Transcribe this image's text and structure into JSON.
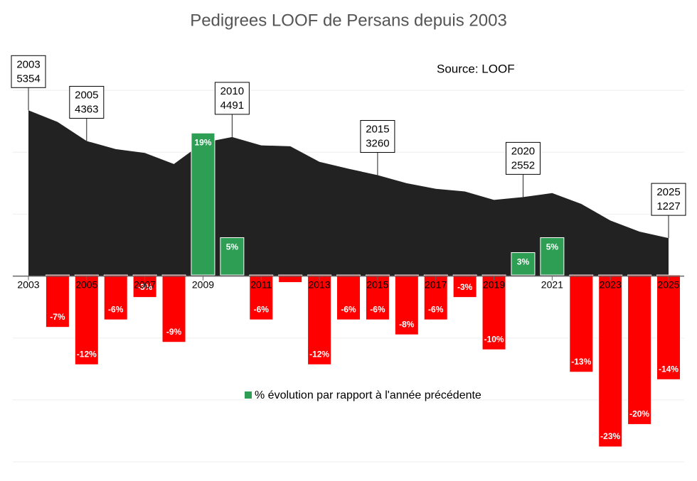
{
  "chart_data": {
    "type": "combo",
    "title": "Pedigrees LOOF de Persans depuis 2003",
    "annotations": [
      "Source: LOOF"
    ],
    "x": [
      2003,
      2004,
      2005,
      2006,
      2007,
      2008,
      2009,
      2010,
      2011,
      2012,
      2013,
      2014,
      2015,
      2016,
      2017,
      2018,
      2019,
      2020,
      2021,
      2022,
      2023,
      2024,
      2025
    ],
    "xlim": [
      2003,
      2025
    ],
    "xticks": [
      2003,
      2005,
      2007,
      2009,
      2011,
      2013,
      2015,
      2017,
      2019,
      2021,
      2023,
      2025
    ],
    "ylim": [
      -6000,
      8000
    ],
    "yticks": [
      -6000,
      -4000,
      -2000,
      0,
      2000,
      4000,
      6000
    ],
    "y2lim": [
      -25,
      33
    ],
    "grid": true,
    "callouts": [
      0,
      2,
      7,
      12,
      17,
      22
    ],
    "series": [
      {
        "type": "area",
        "color": "#222222",
        "values": [
          5354,
          4979,
          4363,
          4101,
          3978,
          3620,
          4308,
          4491,
          4222,
          4193,
          3690,
          3468,
          3260,
          2999,
          2819,
          2734,
          2461,
          2552,
          2680,
          2332,
          1795,
          1436,
          1227
        ]
      },
      {
        "type": "bar",
        "axis": "y2",
        "name": "% évolution par rapport à l'année précédente",
        "color": "#2e9e55",
        "negative_color": "#ff0000",
        "values": [
          null,
          -7,
          -12,
          -6,
          -3,
          -9,
          19,
          5,
          -6,
          -1,
          -12,
          -6,
          -6,
          -8,
          -6,
          -3,
          -10,
          3,
          5,
          -13,
          -23,
          -20,
          -14
        ],
        "value_labels": [
          null,
          "-7%",
          "-12%",
          "-6%",
          "-3%",
          "-9%",
          "19%",
          "5%",
          "-6%",
          null,
          "-12%",
          "-6%",
          "-6%",
          "-8%",
          "-6%",
          "-3%",
          "-10%",
          "3%",
          "5%",
          "-13%",
          "-23%",
          "-20%",
          "-14%"
        ]
      }
    ]
  }
}
